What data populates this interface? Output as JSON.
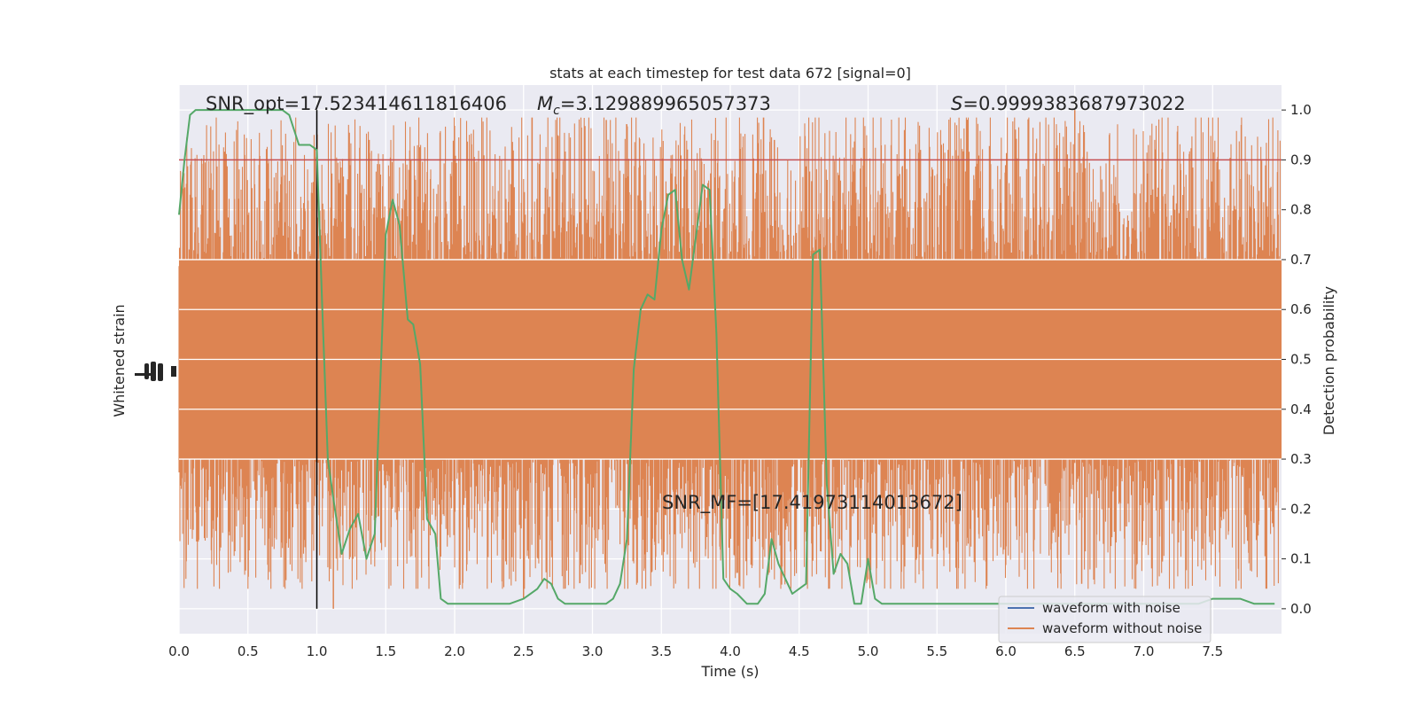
{
  "chart_data": {
    "type": "line",
    "title": "stats at each timestep for test data 672 [signal=0]",
    "xlabel": "Time (s)",
    "ylabel_left": "Whitened strain",
    "ylabel_right": "Detection probability",
    "xlim": [
      0,
      8
    ],
    "ylim_right": [
      -0.05,
      1.05
    ],
    "x_ticks": [
      0.0,
      0.5,
      1.0,
      1.5,
      2.0,
      2.5,
      3.0,
      3.5,
      4.0,
      4.5,
      5.0,
      5.5,
      6.0,
      6.5,
      7.0,
      7.5
    ],
    "x_tick_labels": [
      "0.0",
      "0.5",
      "1.0",
      "1.5",
      "2.0",
      "2.5",
      "3.0",
      "3.5",
      "4.0",
      "4.5",
      "5.0",
      "5.5",
      "6.0",
      "6.5",
      "7.0",
      "7.5"
    ],
    "y_ticks_right": [
      0.0,
      0.1,
      0.2,
      0.3,
      0.4,
      0.5,
      0.6,
      0.7,
      0.8,
      0.9,
      1.0
    ],
    "y_tick_labels_right": [
      "0.0",
      "0.1",
      "0.2",
      "0.3",
      "0.4",
      "0.5",
      "0.6",
      "0.7",
      "0.8",
      "0.9",
      "1.0"
    ],
    "grid": true,
    "legend_position": "lower-right",
    "annotations": {
      "snr_opt": "SNR_opt=17.523414611816406",
      "mc_symbol": "M",
      "mc_sub": "c",
      "mc_value": "=3.129889965057373",
      "s_symbol": "S",
      "s_value": "=0.9999383687973022",
      "snr_mf": "SNR_MF=[17.41973114013672]"
    },
    "threshold": 0.9,
    "marker_time": 1.0,
    "series": [
      {
        "name": "waveform with noise",
        "color": "#4c72b0",
        "values": []
      },
      {
        "name": "waveform without noise",
        "color": "#dd8452",
        "band_center": 0.5,
        "band_core_halfwidth": 0.2,
        "spike_max": 1.0,
        "spike_min": 0.0
      },
      {
        "color": "#55a868",
        "x": [
          0.0,
          0.04,
          0.08,
          0.12,
          0.2,
          0.3,
          0.4,
          0.5,
          0.6,
          0.7,
          0.75,
          0.8,
          0.87,
          0.95,
          1.0,
          1.04,
          1.08,
          1.12,
          1.18,
          1.24,
          1.3,
          1.36,
          1.42,
          1.5,
          1.55,
          1.6,
          1.66,
          1.7,
          1.75,
          1.8,
          1.86,
          1.9,
          1.95,
          2.0,
          2.1,
          2.2,
          2.3,
          2.4,
          2.5,
          2.6,
          2.65,
          2.7,
          2.75,
          2.8,
          2.85,
          2.9,
          3.0,
          3.1,
          3.15,
          3.2,
          3.25,
          3.3,
          3.35,
          3.4,
          3.45,
          3.5,
          3.55,
          3.6,
          3.65,
          3.7,
          3.8,
          3.85,
          3.9,
          3.95,
          4.0,
          4.05,
          4.12,
          4.2,
          4.25,
          4.3,
          4.35,
          4.45,
          4.55,
          4.6,
          4.65,
          4.7,
          4.75,
          4.8,
          4.85,
          4.9,
          4.95,
          5.0,
          5.05,
          5.1,
          5.15,
          5.2,
          5.25,
          5.3,
          5.35,
          5.4,
          5.45,
          5.5,
          5.55,
          5.6,
          5.65,
          5.7,
          5.8,
          6.0,
          6.2,
          6.4,
          6.5,
          6.6,
          6.7,
          6.8,
          6.9,
          7.0,
          7.1,
          7.2,
          7.3,
          7.4,
          7.5,
          7.6,
          7.7,
          7.8,
          7.95
        ],
        "values": [
          0.79,
          0.9,
          0.99,
          1.0,
          1.0,
          1.0,
          1.0,
          1.0,
          1.0,
          1.0,
          1.0,
          0.99,
          0.93,
          0.93,
          0.92,
          0.6,
          0.3,
          0.22,
          0.11,
          0.16,
          0.19,
          0.1,
          0.15,
          0.75,
          0.82,
          0.77,
          0.58,
          0.57,
          0.49,
          0.18,
          0.15,
          0.02,
          0.01,
          0.01,
          0.01,
          0.01,
          0.01,
          0.01,
          0.02,
          0.04,
          0.06,
          0.05,
          0.02,
          0.01,
          0.01,
          0.01,
          0.01,
          0.01,
          0.02,
          0.05,
          0.14,
          0.48,
          0.6,
          0.63,
          0.62,
          0.76,
          0.83,
          0.84,
          0.7,
          0.64,
          0.85,
          0.84,
          0.55,
          0.06,
          0.04,
          0.03,
          0.01,
          0.01,
          0.03,
          0.14,
          0.09,
          0.03,
          0.05,
          0.71,
          0.72,
          0.25,
          0.07,
          0.11,
          0.09,
          0.01,
          0.01,
          0.1,
          0.02,
          0.01,
          0.01,
          0.01,
          0.01,
          0.01,
          0.01,
          0.01,
          0.01,
          0.01,
          0.01,
          0.01,
          0.01,
          0.01,
          0.01,
          0.01,
          0.01,
          0.01,
          0.01,
          0.01,
          0.01,
          0.01,
          0.01,
          0.01,
          0.01,
          0.01,
          0.01,
          0.01,
          0.02,
          0.02,
          0.02,
          0.01,
          0.01
        ]
      }
    ]
  }
}
